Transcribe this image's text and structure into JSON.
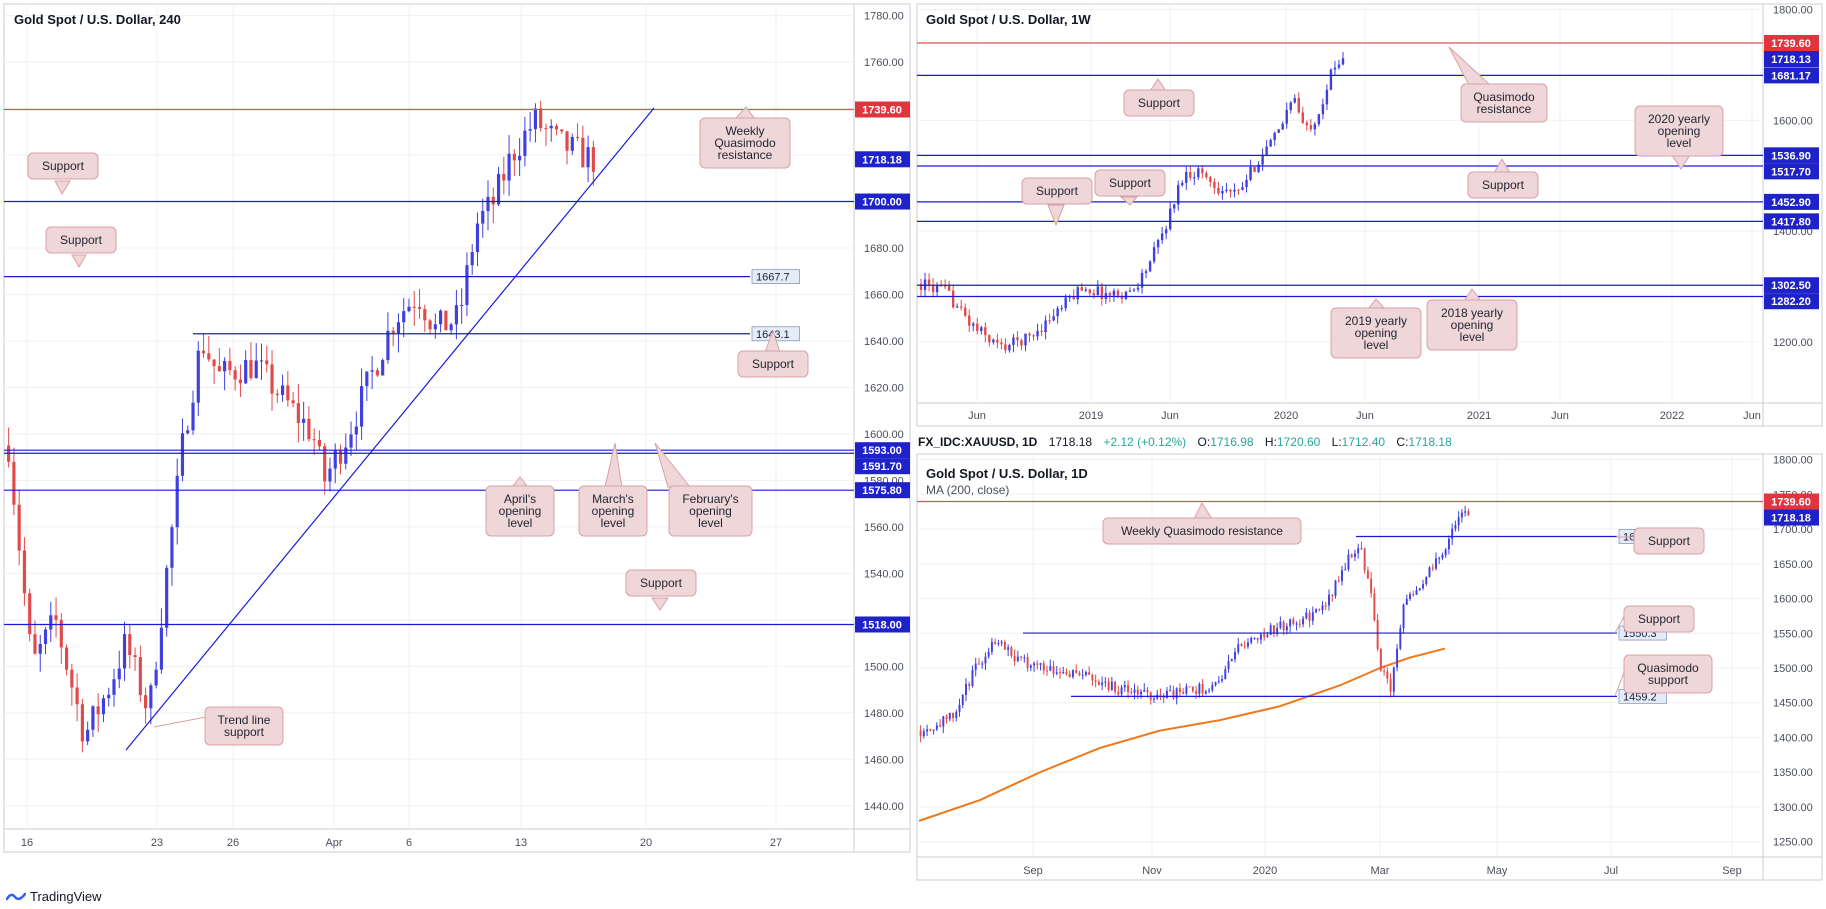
{
  "colors": {
    "up": "#4040e0",
    "down": "#e04a4a",
    "level_blue": "#1a1adb",
    "level_red": "#e05050",
    "callout_bg": "#efd6d8",
    "callout_border": "#d9a1a6",
    "ma": "#f07818",
    "grid": "#eef0f3",
    "axis_text": "#4a4f5a"
  },
  "footer": {
    "brand": "TradingView"
  },
  "chart_data": [
    {
      "id": "h4",
      "type": "candlestick",
      "title": "Gold Spot / U.S. Dollar, 240",
      "y_ticks": [
        "1780.00",
        "1760.00",
        "1740.00",
        "1720.00",
        "1700.00",
        "1680.00",
        "1660.00",
        "1640.00",
        "1620.00",
        "1600.00",
        "1580.00",
        "1560.00",
        "1540.00",
        "1520.00",
        "1500.00",
        "1480.00",
        "1460.00",
        "1440.00"
      ],
      "x_ticks": [
        "16",
        "23",
        "26",
        "Apr",
        "6",
        "13",
        "20",
        "27"
      ],
      "ylim": [
        1430,
        1785
      ],
      "price_tags": [
        {
          "value": 1739.6,
          "label": "1739.60",
          "color": "red"
        },
        {
          "value": 1718.18,
          "label": "1718.18",
          "color": "blue"
        },
        {
          "value": 1700.0,
          "label": "1700.00",
          "color": "blue"
        },
        {
          "value": 1593.0,
          "label": "1593.00",
          "color": "blue"
        },
        {
          "value": 1591.7,
          "label": "1591.70",
          "color": "blue"
        },
        {
          "value": 1575.8,
          "label": "1575.80",
          "color": "blue"
        },
        {
          "value": 1518.0,
          "label": "1518.00",
          "color": "blue"
        }
      ],
      "level_labels": [
        {
          "value": 1667.7,
          "label": "1667.7"
        },
        {
          "value": 1643.1,
          "label": "1643.1"
        }
      ],
      "annotations": [
        "Weekly Quasimodo resistance",
        "Support",
        "Support",
        "Support",
        "April's opening level",
        "March's opening level",
        "February's opening level",
        "Support",
        "Trend line support"
      ]
    },
    {
      "id": "weekly",
      "type": "candlestick",
      "title": "Gold Spot / U.S. Dollar, 1W",
      "y_ticks": [
        "1800.00",
        "1600.00",
        "1400.00",
        "1200.00"
      ],
      "x_ticks": [
        "Jun",
        "2019",
        "Jun",
        "2020",
        "Jun",
        "2021",
        "Jun",
        "2022",
        "Jun"
      ],
      "ylim": [
        1090,
        1810
      ],
      "price_tags": [
        {
          "value": 1739.6,
          "label": "1739.60",
          "color": "red"
        },
        {
          "value": 1718.13,
          "label": "1718.13",
          "color": "blue"
        },
        {
          "value": 1681.17,
          "label": "1681.17",
          "color": "blue"
        },
        {
          "value": 1536.9,
          "label": "1536.90",
          "color": "blue"
        },
        {
          "value": 1517.7,
          "label": "1517.70",
          "color": "blue"
        },
        {
          "value": 1452.9,
          "label": "1452.90",
          "color": "blue"
        },
        {
          "value": 1417.8,
          "label": "1417.80",
          "color": "blue"
        },
        {
          "value": 1302.5,
          "label": "1302.50",
          "color": "blue"
        },
        {
          "value": 1282.2,
          "label": "1282.20",
          "color": "blue"
        }
      ],
      "annotations": [
        "Support",
        "Quasimodo resistance",
        "2020 yearly opening level",
        "Support",
        "Support",
        "Support",
        "2019 yearly opening level",
        "2018 yearly opening level"
      ]
    },
    {
      "id": "daily",
      "type": "candlestick",
      "title": "Gold Spot / U.S. Dollar, 1D",
      "symbol_line": "FX_IDC:XAUUSD, 1D",
      "last": "1718.18",
      "change": "+2.12 (+0.12%)",
      "ohlc": {
        "O": "1716.98",
        "H": "1720.60",
        "L": "1712.40",
        "C": "1718.18"
      },
      "indicator": "MA (200, close)",
      "y_ticks": [
        "1800.00",
        "1750.00",
        "1700.00",
        "1650.00",
        "1600.00",
        "1550.00",
        "1500.00",
        "1450.00",
        "1400.00",
        "1350.00",
        "1300.00",
        "1250.00"
      ],
      "x_ticks": [
        "Sep",
        "Nov",
        "2020",
        "Mar",
        "May",
        "Jul",
        "Sep"
      ],
      "ylim": [
        1228,
        1808
      ],
      "price_tags": [
        {
          "value": 1739.6,
          "label": "1739.60",
          "color": "red"
        },
        {
          "value": 1718.18,
          "label": "1718.18",
          "color": "blue"
        }
      ],
      "level_labels": [
        {
          "value": 1689.3,
          "label": "1689.3"
        },
        {
          "value": 1550.3,
          "label": "1550.3"
        },
        {
          "value": 1459.2,
          "label": "1459.2"
        }
      ],
      "annotations": [
        "Weekly Quasimodo resistance",
        "Support",
        "Support",
        "Quasimodo support"
      ]
    }
  ]
}
